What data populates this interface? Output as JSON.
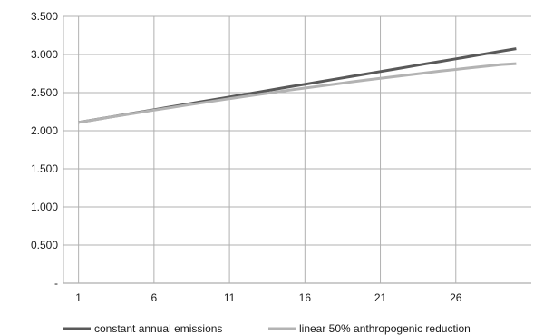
{
  "chart_data": {
    "type": "line",
    "title": "",
    "xlabel": "",
    "ylabel": "",
    "x": [
      1,
      2,
      3,
      4,
      5,
      6,
      7,
      8,
      9,
      10,
      11,
      12,
      13,
      14,
      15,
      16,
      17,
      18,
      19,
      20,
      21,
      22,
      23,
      24,
      25,
      26,
      27,
      28,
      29,
      30
    ],
    "x_ticks": [
      1,
      6,
      11,
      16,
      21,
      26
    ],
    "xlim": [
      0,
      31
    ],
    "ylim": [
      0,
      3.5
    ],
    "y_ticks": [
      0,
      0.5,
      1.0,
      1.5,
      2.0,
      2.5,
      3.0,
      3.5
    ],
    "y_tick_labels": [
      "-",
      "0.500",
      "1.000",
      "1.500",
      "2.000",
      "2.500",
      "3.000",
      "3.500"
    ],
    "grid": true,
    "legend_position": "bottom",
    "series": [
      {
        "name": "constant annual emissions",
        "color": "#595959",
        "values": [
          2.11,
          2.143,
          2.176,
          2.21,
          2.243,
          2.276,
          2.31,
          2.343,
          2.377,
          2.41,
          2.443,
          2.476,
          2.51,
          2.543,
          2.577,
          2.61,
          2.643,
          2.676,
          2.71,
          2.743,
          2.776,
          2.81,
          2.843,
          2.877,
          2.91,
          2.943,
          2.976,
          3.01,
          3.043,
          3.076
        ]
      },
      {
        "name": "linear 50% anthropogenic reduction",
        "color": "#b3b3b3",
        "values": [
          2.11,
          2.142,
          2.175,
          2.207,
          2.238,
          2.27,
          2.3,
          2.331,
          2.361,
          2.391,
          2.42,
          2.449,
          2.477,
          2.505,
          2.533,
          2.56,
          2.586,
          2.612,
          2.638,
          2.663,
          2.688,
          2.712,
          2.736,
          2.759,
          2.782,
          2.804,
          2.826,
          2.847,
          2.868,
          2.88
        ]
      }
    ]
  }
}
